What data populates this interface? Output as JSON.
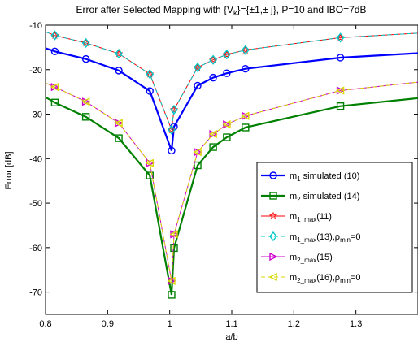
{
  "chart_data": {
    "type": "line",
    "title_parts": {
      "pre": "Error after Selected Mapping with {V",
      "sub": "k",
      "post": "}={±1,± j}, P=10 and IBO=7dB"
    },
    "xlabel": "a/b",
    "ylabel": "Error [dB]",
    "xlim": [
      0.8,
      1.4
    ],
    "ylim": [
      -75,
      -10
    ],
    "xticks": [
      0.8,
      0.9,
      1.0,
      1.1,
      1.2,
      1.3
    ],
    "xtick_labels": [
      "0.8",
      "0.9",
      "1",
      "1.1",
      "1.2",
      "1.3"
    ],
    "yticks": [
      -70,
      -60,
      -50,
      -40,
      -30,
      -20,
      -10
    ],
    "ytick_labels": [
      "-70",
      "-60",
      "-50",
      "-40",
      "-30",
      "-20",
      "-10"
    ],
    "grid": false,
    "legend_position": "lower-right",
    "x": [
      0.8,
      0.815,
      0.865,
      0.918,
      0.968,
      1.003,
      1.007,
      1.045,
      1.07,
      1.092,
      1.122,
      1.275,
      1.4
    ],
    "series": [
      {
        "name_parts": {
          "main": "m",
          "sub": "1",
          "rest": " simulated (10)"
        },
        "color": "#0000ff",
        "marker": "circle",
        "width": 2.2,
        "dash": "",
        "y": [
          -15.2,
          -15.9,
          -17.6,
          -20.2,
          -24.8,
          -38.2,
          -32.8,
          -23.6,
          -21.8,
          -20.8,
          -19.8,
          -17.3,
          -16.3
        ]
      },
      {
        "name_parts": {
          "main": "m",
          "sub": "2",
          "rest": " simulated (14)"
        },
        "color": "#008000",
        "marker": "square",
        "width": 2.2,
        "dash": "",
        "y": [
          -26.2,
          -27.4,
          -30.6,
          -35.4,
          -43.8,
          -70.6,
          -60.1,
          -41.5,
          -37.4,
          -35.2,
          -33.0,
          -28.2,
          -26.4
        ]
      },
      {
        "name_parts": {
          "main": "m",
          "sub": "1_max",
          "rest": "(11)"
        },
        "color": "#ff0000",
        "marker": "star",
        "width": 1,
        "dash": "",
        "y": [
          -11.5,
          -12.3,
          -14.0,
          -16.4,
          -21.0,
          -33.5,
          -29.0,
          -19.5,
          -17.8,
          -16.6,
          -15.6,
          -12.8,
          -11.8
        ]
      },
      {
        "name_parts": {
          "main": "m",
          "sub": "1_max",
          "rest": "(13),ρ",
          "sub2": "min",
          "rest2": "=0"
        },
        "color": "#00c8c8",
        "marker": "diamond",
        "width": 1,
        "dash": "5,3",
        "y": [
          -11.5,
          -12.3,
          -14.0,
          -16.4,
          -21.0,
          -33.5,
          -29.0,
          -19.5,
          -17.8,
          -16.6,
          -15.6,
          -12.8,
          -11.8
        ]
      },
      {
        "name_parts": {
          "main": "m",
          "sub": "2_max",
          "rest": "(15)"
        },
        "color": "#cc00cc",
        "marker": "triangle-right",
        "width": 1,
        "dash": "",
        "y": [
          -23.0,
          -23.9,
          -27.2,
          -32.0,
          -41.0,
          -67.5,
          -57.0,
          -38.5,
          -34.5,
          -32.3,
          -30.4,
          -24.7,
          -22.8
        ]
      },
      {
        "name_parts": {
          "main": "m",
          "sub": "2_max",
          "rest": "(16),ρ",
          "sub2": "min",
          "rest2": "=0"
        },
        "color": "#d8d800",
        "marker": "triangle-left",
        "width": 1,
        "dash": "5,3",
        "y": [
          -23.0,
          -23.9,
          -27.2,
          -32.0,
          -41.0,
          -67.5,
          -57.0,
          -38.5,
          -34.5,
          -32.3,
          -30.4,
          -24.7,
          -22.8
        ]
      }
    ]
  }
}
